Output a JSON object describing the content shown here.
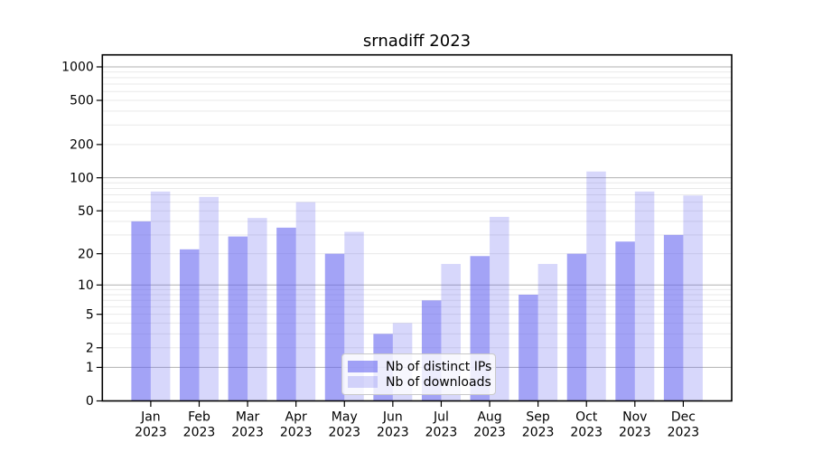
{
  "chart_data": {
    "type": "bar",
    "title": "srnadiff 2023",
    "categories": [
      "Jan",
      "Feb",
      "Mar",
      "Apr",
      "May",
      "Jun",
      "Jul",
      "Aug",
      "Sep",
      "Oct",
      "Nov",
      "Dec"
    ],
    "x_tick_second_line": "2023",
    "series": [
      {
        "name": "Nb of distinct IPs",
        "color": "#6666f0",
        "fill_opacity": 0.6,
        "values": [
          40,
          22,
          29,
          35,
          20,
          3,
          7,
          19,
          8,
          20,
          26,
          30
        ]
      },
      {
        "name": "Nb of downloads",
        "color": "#6666f0",
        "fill_opacity": 0.26,
        "values": [
          75,
          67,
          43,
          60,
          32,
          4,
          16,
          44,
          16,
          114,
          75,
          69
        ]
      }
    ],
    "yscale": "log10(value+1)",
    "yticks": [
      0,
      1,
      2,
      5,
      10,
      20,
      50,
      100,
      200,
      500,
      1000
    ],
    "ylim": [
      0,
      1280
    ],
    "grid": {
      "major_values": [
        1,
        10,
        100,
        1000
      ],
      "minor_rule": "2-9 per decade",
      "major_color": "#b0b0b0",
      "minor_color": "#e9e9e9"
    },
    "legend_position": "lower center",
    "axis_color": "#000000",
    "background": "#ffffff"
  }
}
